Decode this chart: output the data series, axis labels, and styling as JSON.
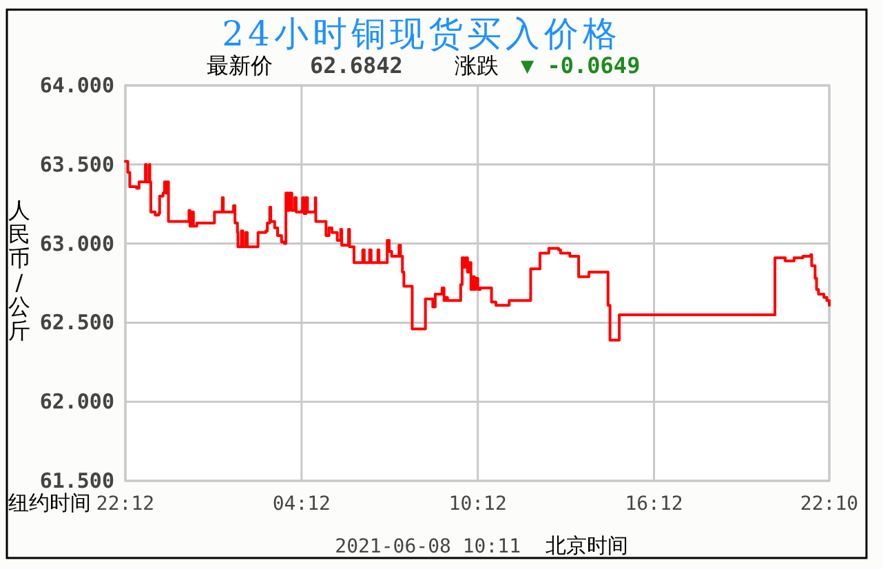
{
  "chart_data": {
    "type": "step",
    "title": "24小时铜现货买入价格",
    "annotations": [
      "最新价",
      "62.6842",
      "涨跌",
      "▼ -0.0649",
      "2021-06-08 10:11",
      "北京时间"
    ],
    "xlabel": "纽约时间",
    "ylabel": "人民币/公斤",
    "color": "#ff0000",
    "grid": true,
    "xlim": [
      "2021-06-06T22:12",
      "2021-06-07T22:10"
    ],
    "xticks": [
      {
        "value": "2021-06-06T22:12",
        "label": "22:12"
      },
      {
        "value": "2021-06-07T04:12",
        "label": "04:12"
      },
      {
        "value": "2021-06-07T10:12",
        "label": "10:12"
      },
      {
        "value": "2021-06-07T16:12",
        "label": "16:12"
      },
      {
        "value": "2021-06-07T22:10",
        "label": "22:10"
      }
    ],
    "ylim": [
      61.5,
      64
    ],
    "yticks": [
      {
        "value": 61.5,
        "label": "61.500"
      },
      {
        "value": 62,
        "label": "62.000"
      },
      {
        "value": 62.5,
        "label": "62.500"
      },
      {
        "value": 63,
        "label": "63.000"
      },
      {
        "value": 63.5,
        "label": "63.500"
      },
      {
        "value": 64,
        "label": "64.000"
      }
    ],
    "x": [
      "2021-06-06T22:12",
      "2021-06-06T22:17",
      "2021-06-06T22:21",
      "2021-06-06T22:35",
      "2021-06-06T22:40",
      "2021-06-06T22:53",
      "2021-06-06T22:55",
      "2021-06-06T23:01",
      "2021-06-06T23:02",
      "2021-06-06T23:04",
      "2021-06-06T23:13",
      "2021-06-06T23:20",
      "2021-06-06T23:22",
      "2021-06-06T23:29",
      "2021-06-06T23:32",
      "2021-06-06T23:35",
      "2021-06-06T23:38",
      "2021-06-06T23:40",
      "2021-06-07T00:22",
      "2021-06-07T00:24",
      "2021-06-07T00:29",
      "2021-06-07T00:31",
      "2021-06-07T00:38",
      "2021-06-07T01:14",
      "2021-06-07T01:30",
      "2021-06-07T01:32",
      "2021-06-07T01:53",
      "2021-06-07T01:56",
      "2021-06-07T02:01",
      "2021-06-07T02:02",
      "2021-06-07T02:09",
      "2021-06-07T02:12",
      "2021-06-07T02:18",
      "2021-06-07T02:21",
      "2021-06-07T02:43",
      "2021-06-07T02:59",
      "2021-06-07T03:02",
      "2021-06-07T03:07",
      "2021-06-07T03:09",
      "2021-06-07T03:17",
      "2021-06-07T03:23",
      "2021-06-07T03:31",
      "2021-06-07T03:37",
      "2021-06-07T03:40",
      "2021-06-07T03:44",
      "2021-06-07T03:47",
      "2021-06-07T03:52",
      "2021-06-07T03:58",
      "2021-06-07T04:01",
      "2021-06-07T04:12",
      "2021-06-07T04:14",
      "2021-06-07T04:17",
      "2021-06-07T04:21",
      "2021-06-07T04:24",
      "2021-06-07T04:40",
      "2021-06-07T04:41",
      "2021-06-07T05:02",
      "2021-06-07T05:08",
      "2021-06-07T05:14",
      "2021-06-07T05:25",
      "2021-06-07T05:32",
      "2021-06-07T05:34",
      "2021-06-07T05:48",
      "2021-06-07T05:50",
      "2021-06-07T05:59",
      "2021-06-07T06:17",
      "2021-06-07T06:20",
      "2021-06-07T06:31",
      "2021-06-07T06:34",
      "2021-06-07T06:48",
      "2021-06-07T06:50",
      "2021-06-07T07:07",
      "2021-06-07T07:11",
      "2021-06-07T07:16",
      "2021-06-07T07:31",
      "2021-06-07T07:34",
      "2021-06-07T07:38",
      "2021-06-07T07:41",
      "2021-06-07T07:58",
      "2021-06-07T08:25",
      "2021-06-07T08:40",
      "2021-06-07T08:45",
      "2021-06-07T08:59",
      "2021-06-07T09:03",
      "2021-06-07T09:06",
      "2021-06-07T09:10",
      "2021-06-07T09:37",
      "2021-06-07T09:40",
      "2021-06-07T09:44",
      "2021-06-07T09:47",
      "2021-06-07T09:51",
      "2021-06-07T09:53",
      "2021-06-07T09:58",
      "2021-06-07T10:01",
      "2021-06-07T10:05",
      "2021-06-07T10:07",
      "2021-06-07T10:12",
      "2021-06-07T10:17",
      "2021-06-07T10:40",
      "2021-06-07T10:49",
      "2021-06-07T11:16",
      "2021-06-07T12:00",
      "2021-06-07T12:19",
      "2021-06-07T12:37",
      "2021-06-07T12:57",
      "2021-06-07T13:01",
      "2021-06-07T13:20",
      "2021-06-07T13:38",
      "2021-06-07T13:59",
      "2021-06-07T14:38",
      "2021-06-07T14:42",
      "2021-06-07T15:01",
      "2021-06-07T20:19",
      "2021-06-07T20:40",
      "2021-06-07T20:58",
      "2021-06-07T21:16",
      "2021-06-07T21:32",
      "2021-06-07T21:34",
      "2021-06-07T21:41",
      "2021-06-07T21:44",
      "2021-06-07T21:48",
      "2021-06-07T21:59",
      "2021-06-07T22:05",
      "2021-06-07T22:10"
    ],
    "values": [
      63.52,
      63.45,
      63.36,
      63.35,
      63.39,
      63.5,
      63.39,
      63.5,
      63.39,
      63.2,
      63.18,
      63.19,
      63.3,
      63.32,
      63.39,
      63.32,
      63.39,
      63.14,
      63.21,
      63.11,
      63.2,
      63.11,
      63.13,
      63.2,
      63.29,
      63.2,
      63.24,
      63.13,
      63.07,
      62.98,
      63.08,
      62.98,
      63.07,
      62.98,
      63.07,
      63.08,
      63.13,
      63.23,
      63.14,
      63.1,
      63.05,
      63.01,
      63.0,
      63.32,
      63.21,
      63.32,
      63.21,
      63.29,
      63.2,
      63.21,
      63.29,
      63.19,
      63.29,
      63.2,
      63.29,
      63.14,
      63.05,
      63.1,
      63.07,
      63.02,
      63.09,
      62.99,
      63.09,
      62.98,
      62.88,
      62.96,
      62.88,
      62.96,
      62.88,
      62.96,
      62.88,
      63.02,
      62.95,
      62.92,
      62.99,
      62.92,
      62.82,
      62.73,
      62.46,
      62.65,
      62.6,
      62.68,
      62.72,
      62.64,
      62.66,
      62.64,
      62.74,
      62.91,
      62.85,
      62.91,
      62.82,
      62.88,
      62.71,
      62.79,
      62.71,
      62.78,
      62.71,
      62.72,
      62.63,
      62.61,
      62.64,
      62.84,
      62.94,
      62.97,
      62.96,
      62.94,
      62.92,
      62.79,
      62.82,
      62.61,
      62.39,
      62.55,
      62.91,
      62.89,
      62.91,
      62.92,
      62.93,
      62.86,
      62.78,
      62.71,
      62.68,
      62.66,
      62.64,
      62.61
    ]
  }
}
